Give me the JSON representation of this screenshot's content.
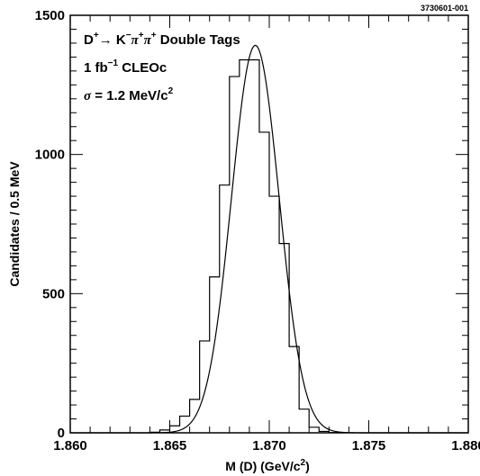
{
  "chart_data": {
    "type": "line",
    "figure_code": "3730601-001",
    "xlabel": "M (D) (GeV/c",
    "xlabel_sup": "2",
    "xlabel_end": ")",
    "ylabel": "Candidates / 0.5 MeV",
    "xlim": [
      1.86,
      1.88
    ],
    "ylim": [
      0,
      1500
    ],
    "xticks": [
      "1.860",
      "1.865",
      "1.870",
      "1.875",
      "1.880"
    ],
    "yticks": [
      "0",
      "500",
      "1000",
      "1500"
    ],
    "annotations": {
      "line1": {
        "d": "D",
        "d_sup": "+",
        "arrow": "→",
        "k": " K",
        "k_sup": "−",
        "pi1": "π",
        "pi1_sup": "+",
        "pi2": "π",
        "pi2_sup": "+",
        "rest": " Double Tags"
      },
      "line2": {
        "a": "1 fb",
        "sup": "−1",
        "b": " CLEOc"
      },
      "line3": {
        "sigma": "σ",
        "a": " = 1.2 MeV/c",
        "sup": "2"
      }
    },
    "histogram": {
      "bin_width": 0.0005,
      "bins_x": [
        1.864,
        1.8645,
        1.865,
        1.8655,
        1.866,
        1.8665,
        1.867,
        1.8675,
        1.868,
        1.8685,
        1.869,
        1.8695,
        1.87,
        1.8705,
        1.871,
        1.8715,
        1.872,
        1.8725,
        1.873
      ],
      "values": [
        2,
        10,
        25,
        60,
        120,
        330,
        560,
        890,
        1280,
        1340,
        1340,
        1080,
        850,
        680,
        310,
        85,
        20,
        5,
        1
      ]
    },
    "fit": {
      "type": "gaussian",
      "mean": 1.8693,
      "sigma": 0.0012,
      "peak": 1392
    }
  }
}
